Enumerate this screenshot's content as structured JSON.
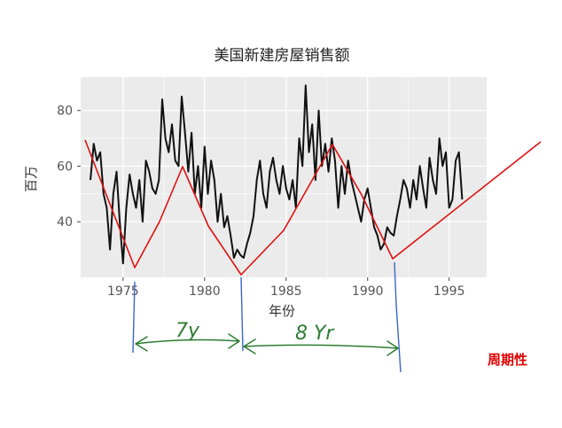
{
  "chart_data": {
    "type": "line",
    "title": "美国新建房屋销售额",
    "xlabel": "年份",
    "ylabel": "百万",
    "xlim": [
      1972.4,
      1997.3
    ],
    "ylim": [
      20,
      92
    ],
    "x_ticks": [
      1975,
      1980,
      1985,
      1990,
      1995
    ],
    "x_tick_labels": [
      "1975",
      "1980",
      "1985",
      "1990",
      "1995"
    ],
    "y_ticks": [
      40,
      60,
      80
    ],
    "y_tick_labels": [
      "40",
      "60",
      "80"
    ],
    "grid": true,
    "background": "#ebebeb",
    "grid_color": "#ffffff",
    "series": [
      {
        "color": "#111111",
        "x": [
          1973.0,
          1973.2,
          1973.4,
          1973.6,
          1973.8,
          1974.0,
          1974.2,
          1974.4,
          1974.6,
          1974.8,
          1975.0,
          1975.2,
          1975.4,
          1975.6,
          1975.8,
          1976.0,
          1976.2,
          1976.4,
          1976.6,
          1976.8,
          1977.0,
          1977.2,
          1977.4,
          1977.6,
          1977.8,
          1978.0,
          1978.2,
          1978.4,
          1978.6,
          1978.8,
          1979.0,
          1979.2,
          1979.4,
          1979.6,
          1979.8,
          1980.0,
          1980.2,
          1980.4,
          1980.6,
          1980.8,
          1981.0,
          1981.2,
          1981.4,
          1981.6,
          1981.8,
          1982.0,
          1982.2,
          1982.4,
          1982.6,
          1982.8,
          1983.0,
          1983.2,
          1983.4,
          1983.6,
          1983.8,
          1984.0,
          1984.2,
          1984.4,
          1984.6,
          1984.8,
          1985.0,
          1985.2,
          1985.4,
          1985.6,
          1985.8,
          1986.0,
          1986.2,
          1986.4,
          1986.6,
          1986.8,
          1987.0,
          1987.2,
          1987.4,
          1987.6,
          1987.8,
          1988.0,
          1988.2,
          1988.4,
          1988.6,
          1988.8,
          1989.0,
          1989.2,
          1989.4,
          1989.6,
          1989.8,
          1990.0,
          1990.2,
          1990.4,
          1990.6,
          1990.8,
          1991.0,
          1991.2,
          1991.4,
          1991.6,
          1991.8,
          1992.0,
          1992.2,
          1992.4,
          1992.6,
          1992.8,
          1993.0,
          1993.2,
          1993.4,
          1993.6,
          1993.8,
          1994.0,
          1994.2,
          1994.4,
          1994.6,
          1994.8,
          1995.0,
          1995.2,
          1995.4,
          1995.6,
          1995.8
        ],
        "y": [
          55,
          68,
          62,
          65,
          50,
          45,
          30,
          50,
          58,
          40,
          25,
          45,
          57,
          50,
          45,
          55,
          40,
          62,
          58,
          52,
          50,
          55,
          84,
          70,
          65,
          75,
          62,
          60,
          85,
          72,
          58,
          72,
          50,
          60,
          45,
          67,
          50,
          62,
          55,
          40,
          50,
          38,
          42,
          35,
          27,
          30,
          28,
          27,
          32,
          36,
          42,
          55,
          62,
          50,
          45,
          58,
          63,
          55,
          50,
          60,
          52,
          48,
          55,
          45,
          70,
          60,
          89,
          65,
          75,
          55,
          80,
          60,
          68,
          58,
          70,
          62,
          45,
          60,
          50,
          62,
          55,
          50,
          45,
          40,
          48,
          52,
          45,
          38,
          35,
          30,
          32,
          38,
          36,
          35,
          42,
          48,
          55,
          52,
          45,
          55,
          48,
          60,
          52,
          45,
          63,
          55,
          50,
          70,
          60,
          65,
          45,
          48,
          62,
          65,
          48
        ]
      }
    ],
    "annotations": {
      "cycle_labels": [
        "7y",
        "8 Yr"
      ],
      "side_note": "周期性"
    }
  }
}
